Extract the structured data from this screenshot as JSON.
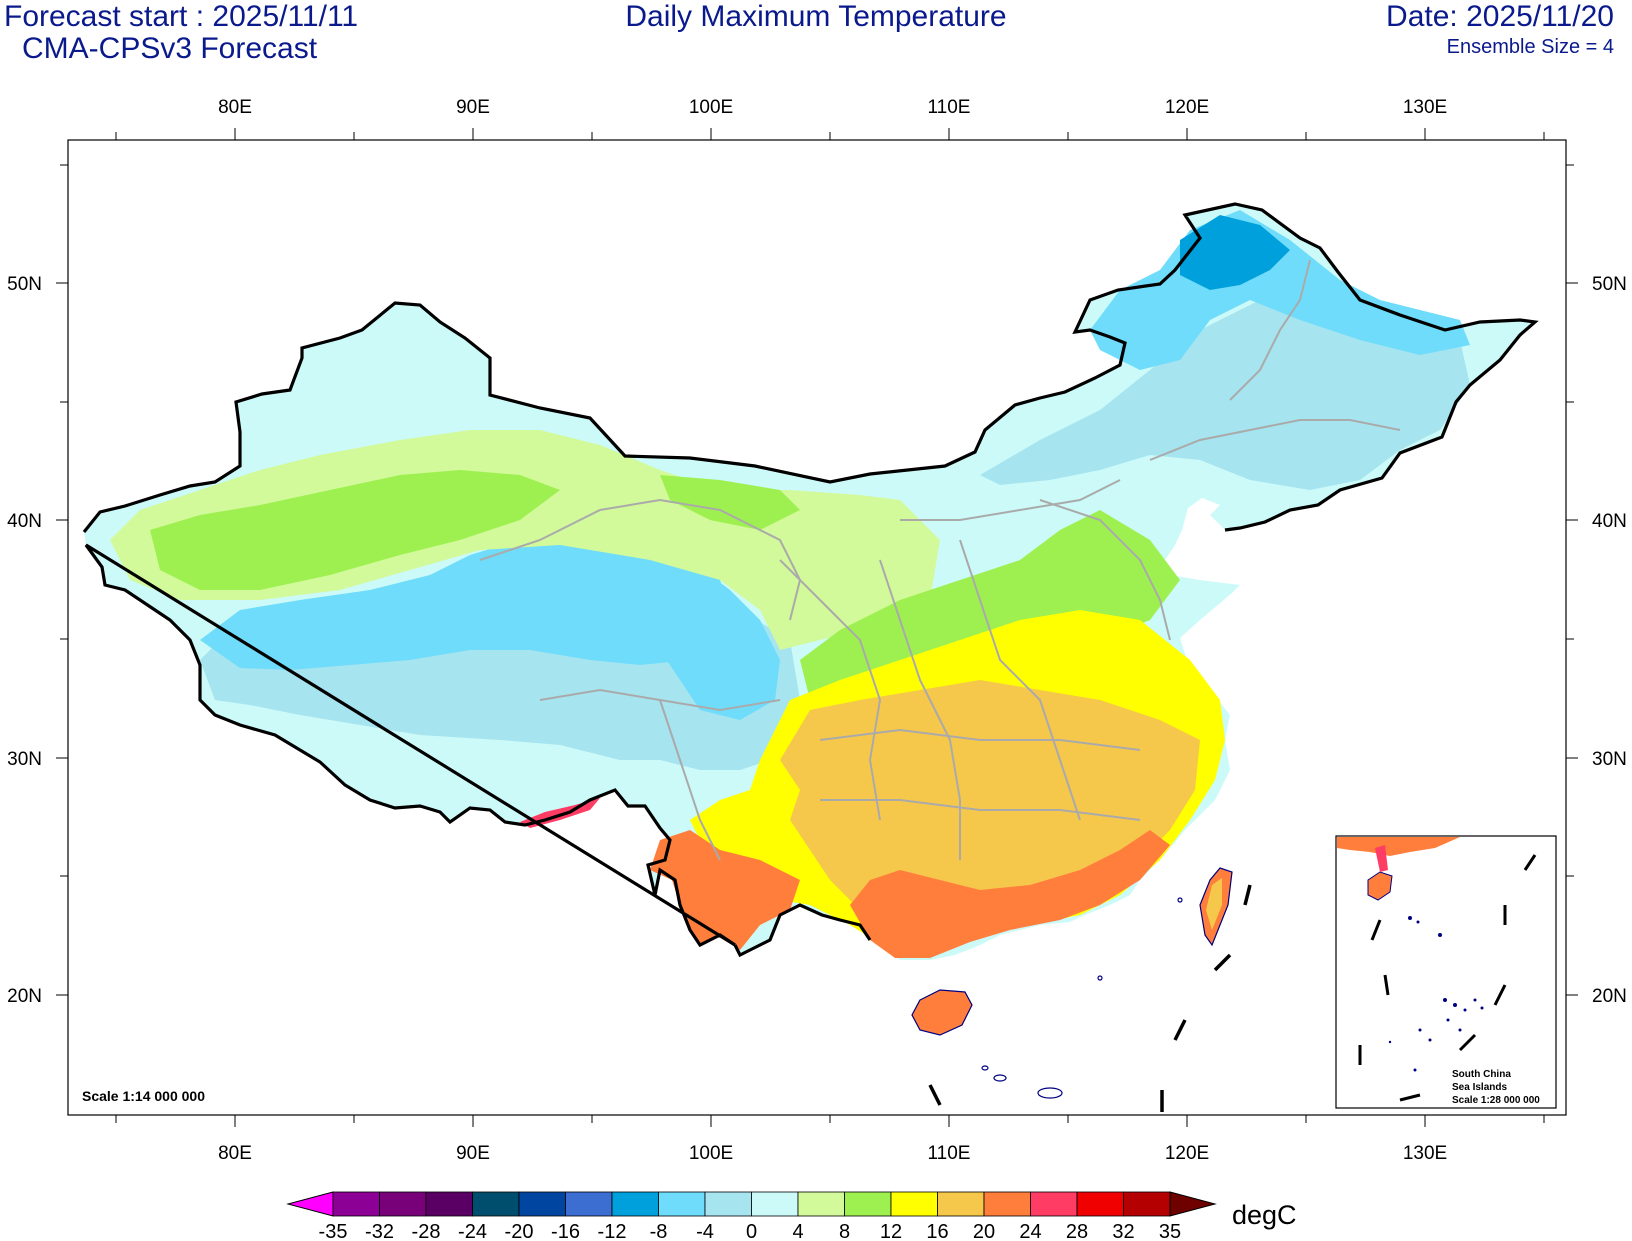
{
  "header": {
    "forecast_start": "Forecast start : 2025/11/11",
    "model": "CMA-CPSv3 Forecast",
    "title": "Daily Maximum Temperature",
    "date": "Date: 2025/11/20",
    "ensemble": "Ensemble Size = 4"
  },
  "map": {
    "lon_labels": [
      "80E",
      "90E",
      "100E",
      "110E",
      "120E",
      "130E"
    ],
    "lat_labels": [
      "50N",
      "40N",
      "30N",
      "20N"
    ],
    "scale_main": "Scale 1:14 000 000",
    "inset_lines": [
      "South China",
      "Sea Islands",
      "Scale 1:28 000 000"
    ]
  },
  "colorbar": {
    "unit": "degC",
    "ticks": [
      "-35",
      "-32",
      "-28",
      "-24",
      "-20",
      "-16",
      "-12",
      "-8",
      "-4",
      "0",
      "4",
      "8",
      "12",
      "16",
      "20",
      "24",
      "28",
      "32",
      "35"
    ],
    "colors": [
      "#8c0096",
      "#780078",
      "#5a0064",
      "#004e6e",
      "#0046a0",
      "#3c6ed2",
      "#00a0dc",
      "#6edcfa",
      "#a6e4f0",
      "#ccfaf8",
      "#d2fa9a",
      "#9ef050",
      "#ffff00",
      "#f5c84b",
      "#ff7e3c",
      "#ff3c64",
      "#f00000",
      "#b40000"
    ],
    "low_color": "#ff00ff",
    "high_color": "#6e0000"
  },
  "colors": {
    "title": "#0a1a8c",
    "border": "#000000",
    "province": "#aaaaaa"
  }
}
